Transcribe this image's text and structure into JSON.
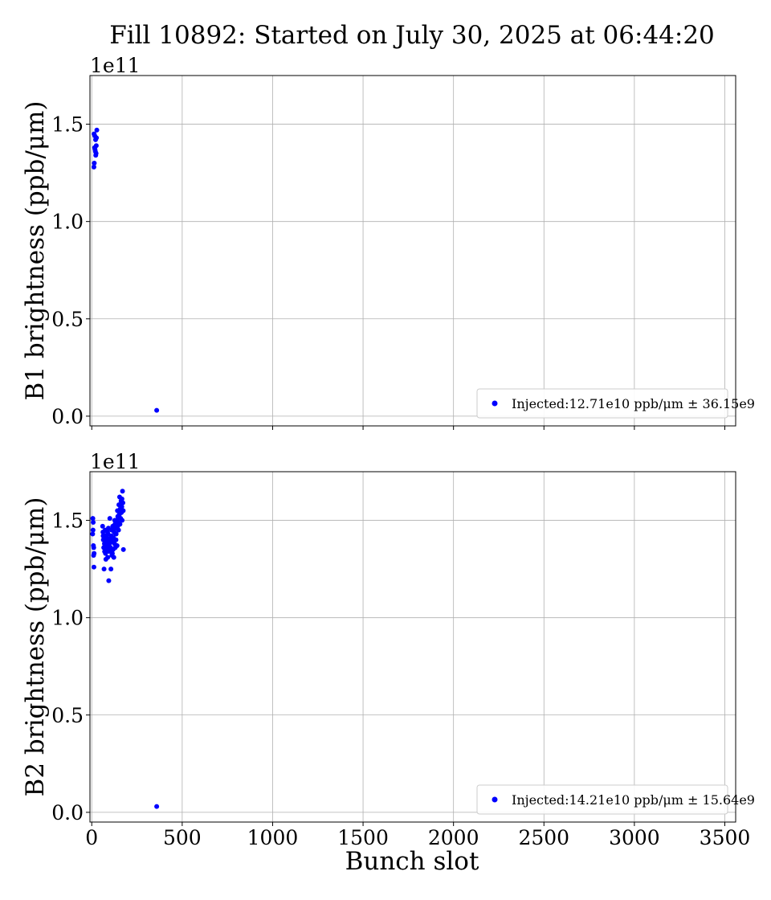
{
  "chart_data": {
    "type": "scatter",
    "title": "Fill 10892: Started on July 30, 2025 at 06:44:20",
    "xlabel": "Bunch slot",
    "xlim": [
      -10,
      3560
    ],
    "xticks": [
      "0",
      "500",
      "1000",
      "1500",
      "2000",
      "2500",
      "3000",
      "3500"
    ],
    "xtick_values": [
      0,
      500,
      1000,
      1500,
      2000,
      2500,
      3000,
      3500
    ],
    "grid": true,
    "marker_color": "#0000ff",
    "legend_placement": "lower right",
    "panels": [
      {
        "ylabel": "B1 brightness (ppb/μm)",
        "offset_text": "1e11",
        "ylim": [
          -0.05,
          1.75
        ],
        "yticks": [
          "0.0",
          "0.5",
          "1.0",
          "1.5"
        ],
        "ytick_values": [
          0.0,
          0.5,
          1.0,
          1.5
        ],
        "series": [
          {
            "name": "Injected:12.71e10 ppb/μm ± 36.15e9",
            "x": [
              12,
              14,
              16,
              18,
              20,
              22,
              24,
              26,
              28,
              13,
              17,
              21,
              25,
              359
            ],
            "y": [
              1.28,
              1.3,
              1.38,
              1.37,
              1.36,
              1.34,
              1.35,
              1.43,
              1.47,
              1.45,
              1.44,
              1.42,
              1.39,
              0.03
            ]
          }
        ]
      },
      {
        "ylabel": "B2 brightness (ppb/μm)",
        "offset_text": "1e11",
        "ylim": [
          -0.05,
          1.75
        ],
        "yticks": [
          "0.0",
          "0.5",
          "1.0",
          "1.5"
        ],
        "ytick_values": [
          0.0,
          0.5,
          1.0,
          1.5
        ],
        "series": [
          {
            "name": "Injected:14.21e10 ppb/μm ± 15.64e9",
            "x": [
              5,
              7,
              9,
              10,
              12,
              6,
              8,
              11,
              13,
              60,
              62,
              64,
              66,
              68,
              70,
              72,
              74,
              76,
              78,
              80,
              82,
              84,
              86,
              88,
              90,
              92,
              94,
              96,
              98,
              100,
              102,
              104,
              106,
              108,
              110,
              112,
              114,
              116,
              118,
              120,
              122,
              124,
              126,
              128,
              130,
              132,
              134,
              136,
              138,
              140,
              142,
              144,
              146,
              148,
              150,
              152,
              154,
              156,
              158,
              160,
              162,
              164,
              166,
              168,
              170,
              172,
              174,
              63,
              71,
              79,
              87,
              95,
              103,
              111,
              119,
              127,
              135,
              143,
              151,
              159,
              167,
              175,
              359
            ],
            "y": [
              1.43,
              1.45,
              1.37,
              1.32,
              1.26,
              1.51,
              1.49,
              1.36,
              1.33,
              1.47,
              1.44,
              1.4,
              1.36,
              1.25,
              1.38,
              1.42,
              1.45,
              1.33,
              1.3,
              1.37,
              1.41,
              1.35,
              1.39,
              1.31,
              1.43,
              1.46,
              1.19,
              1.34,
              1.38,
              1.51,
              1.4,
              1.36,
              1.25,
              1.42,
              1.45,
              1.39,
              1.33,
              1.47,
              1.35,
              1.41,
              1.31,
              1.44,
              1.38,
              1.48,
              1.36,
              1.43,
              1.4,
              1.46,
              1.5,
              1.37,
              1.55,
              1.52,
              1.49,
              1.45,
              1.58,
              1.53,
              1.62,
              1.48,
              1.56,
              1.51,
              1.6,
              1.54,
              1.57,
              1.5,
              1.65,
              1.59,
              1.55,
              1.42,
              1.34,
              1.39,
              1.44,
              1.37,
              1.41,
              1.32,
              1.46,
              1.5,
              1.43,
              1.47,
              1.52,
              1.56,
              1.61,
              1.35,
              0.03
            ]
          }
        ]
      }
    ]
  }
}
